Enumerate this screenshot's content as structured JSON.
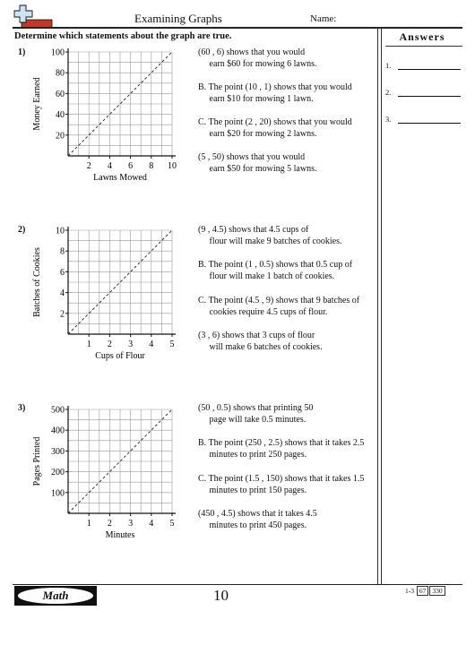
{
  "header": {
    "title": "Examining Graphs",
    "name_label": "Name:"
  },
  "instructions": "Determine which statements about the graph are true.",
  "answers": {
    "title": "Answers",
    "items": [
      "1.",
      "2.",
      "3."
    ]
  },
  "problems": [
    {
      "number": "1)",
      "chart_data": {
        "type": "line",
        "xlabel": "Lawns Mowed",
        "ylabel": "Money Earned",
        "xlim": [
          0,
          10
        ],
        "ylim": [
          0,
          100
        ],
        "xticks": [
          "2",
          "4",
          "6",
          "8",
          "10"
        ],
        "yticks": [
          "20",
          "40",
          "60",
          "80",
          "100"
        ],
        "line": {
          "x": [
            0,
            10
          ],
          "y": [
            0,
            100
          ],
          "style": "dashed"
        },
        "grid": true
      },
      "statements": [
        "(60 , 6) shows that you would\n     earn $60 for mowing 6 lawns.",
        "B. The point (10 , 1) shows that you would\n     earn $10 for mowing 1 lawn.",
        "C. The point (2 , 20) shows that you would\n     earn $20 for mowing 2 lawns.",
        "(5 , 50) shows that you would\n     earn $50 for mowing 5 lawns."
      ]
    },
    {
      "number": "2)",
      "chart_data": {
        "type": "line",
        "xlabel": "Cups of Flour",
        "ylabel": "Batches of Cookies",
        "xlim": [
          0,
          5
        ],
        "ylim": [
          0,
          10
        ],
        "xticks": [
          "1",
          "2",
          "3",
          "4",
          "5"
        ],
        "yticks": [
          "2",
          "4",
          "6",
          "8",
          "10"
        ],
        "line": {
          "x": [
            0,
            5
          ],
          "y": [
            0,
            10
          ],
          "style": "dashed"
        },
        "grid": true
      },
      "statements": [
        "(9 , 4.5) shows that 4.5 cups of\n     flour will make 9 batches of cookies.",
        "B. The point (1 , 0.5) shows that 0.5 cup of\n     flour will make 1 batch of cookies.",
        "C. The point (4.5 , 9) shows that 9 batches of\n     cookies require 4.5 cups of flour.",
        "(3 , 6) shows that 3 cups of flour\n     will make 6 batches of cookies."
      ]
    },
    {
      "number": "3)",
      "chart_data": {
        "type": "line",
        "xlabel": "Minutes",
        "ylabel": "Pages Printed",
        "xlim": [
          0,
          5
        ],
        "ylim": [
          0,
          500
        ],
        "xticks": [
          "1",
          "2",
          "3",
          "4",
          "5"
        ],
        "yticks": [
          "100",
          "200",
          "300",
          "400",
          "500"
        ],
        "line": {
          "x": [
            0,
            5
          ],
          "y": [
            0,
            500
          ],
          "style": "dashed"
        },
        "grid": true
      },
      "statements": [
        "(50 , 0.5) shows that printing 50\n     page will take 0.5 minutes.",
        "B. The point (250 , 2.5) shows that it takes 2.5\n     minutes to print 250 pages.",
        "C. The point (1.5 , 150) shows that it takes 1.5\n     minutes to print 150 pages.",
        "(450 , 4.5) shows that it takes 4.5\n     minutes to print 450 pages."
      ]
    }
  ],
  "footer": {
    "badge": "Math",
    "page_number": "10",
    "range": "1-3",
    "scores": [
      "67",
      "330"
    ]
  },
  "colors": {
    "logo_blue": "#cfe4f2",
    "logo_red": "#c0392b",
    "ink": "#111111"
  }
}
